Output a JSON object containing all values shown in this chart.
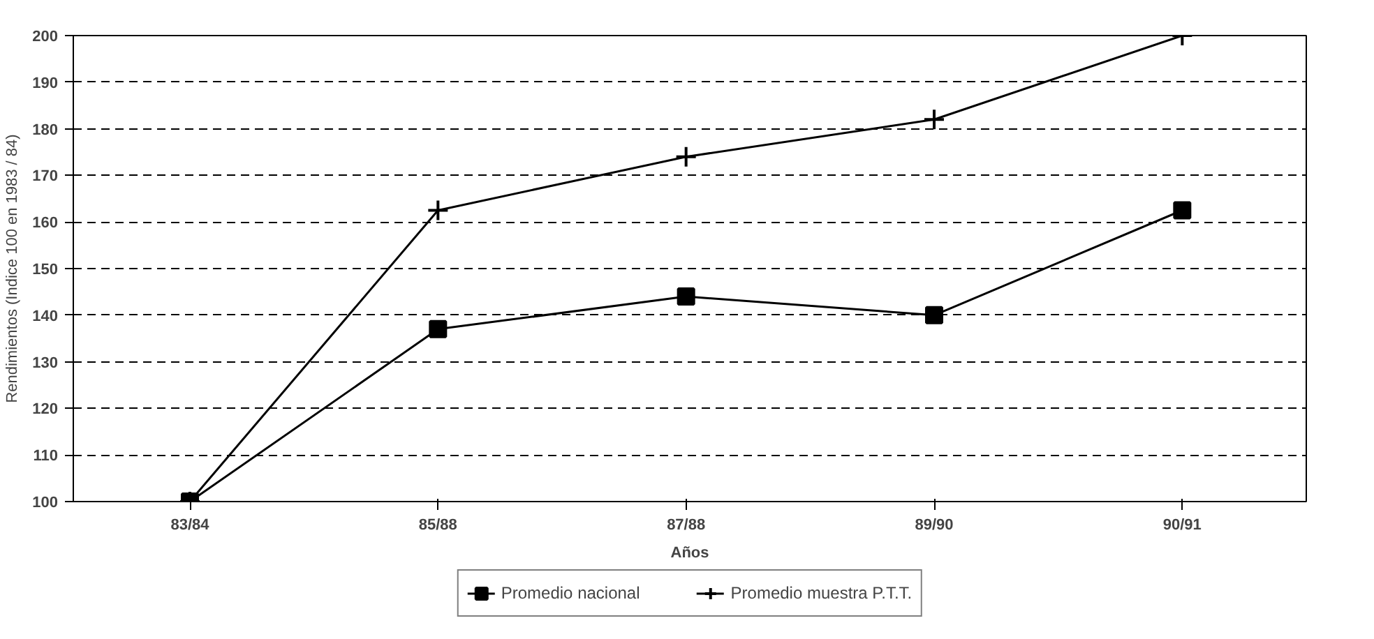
{
  "chart_data": {
    "type": "line",
    "xlabel": "Años",
    "ylabel": "Rendimientos (Indice 100 en 1983 / 84)",
    "categories": [
      "83/84",
      "85/88",
      "87/88",
      "89/90",
      "90/91"
    ],
    "series": [
      {
        "name": "Promedio nacional",
        "color": "#000000",
        "marker": "square",
        "values": [
          100,
          137,
          144,
          140,
          162.5
        ]
      },
      {
        "name": "Promedio muestra P.T.T.",
        "color": "#000000",
        "marker": "cross",
        "values": [
          100,
          162.5,
          174,
          182,
          200
        ]
      }
    ],
    "ylim": [
      100,
      200
    ],
    "yticks": [
      100,
      110,
      120,
      130,
      140,
      150,
      160,
      170,
      180,
      190,
      200
    ],
    "grid": "y",
    "legend": "bottom",
    "line_style": "solid"
  }
}
